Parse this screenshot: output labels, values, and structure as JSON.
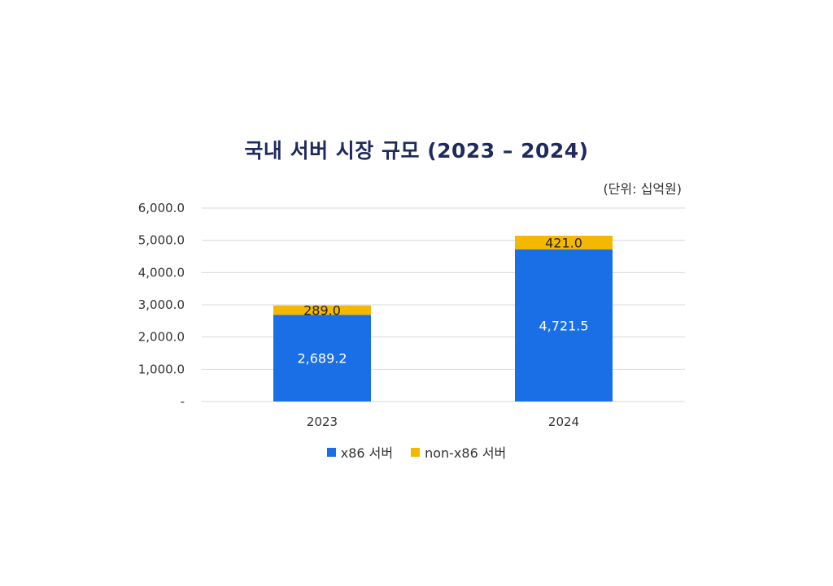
{
  "chart_data": {
    "type": "bar",
    "stacked": true,
    "title": "국내 서버 시장 규모 (2023 – 2024)",
    "unit_note": "(단위: 십억원)",
    "categories": [
      "2023",
      "2024"
    ],
    "series": [
      {
        "name": "x86 서버",
        "values": [
          2689.2,
          4721.5
        ],
        "labels": [
          "2,689.2",
          "4,721.5"
        ],
        "color": "#1a6fe6",
        "label_color": "#ffffff"
      },
      {
        "name": "non-x86 서버",
        "values": [
          289.0,
          421.0
        ],
        "labels": [
          "289.0",
          "421.0"
        ],
        "color": "#f5b800",
        "label_color": "#222222"
      }
    ],
    "ylim": [
      0,
      6000
    ],
    "yticks": [
      0,
      1000,
      2000,
      3000,
      4000,
      5000,
      6000
    ],
    "ytick_labels": [
      "-",
      "1,000.0",
      "2,000.0",
      "3,000.0",
      "4,000.0",
      "5,000.0",
      "6,000.0"
    ],
    "grid": true,
    "legend_position": "bottom"
  }
}
